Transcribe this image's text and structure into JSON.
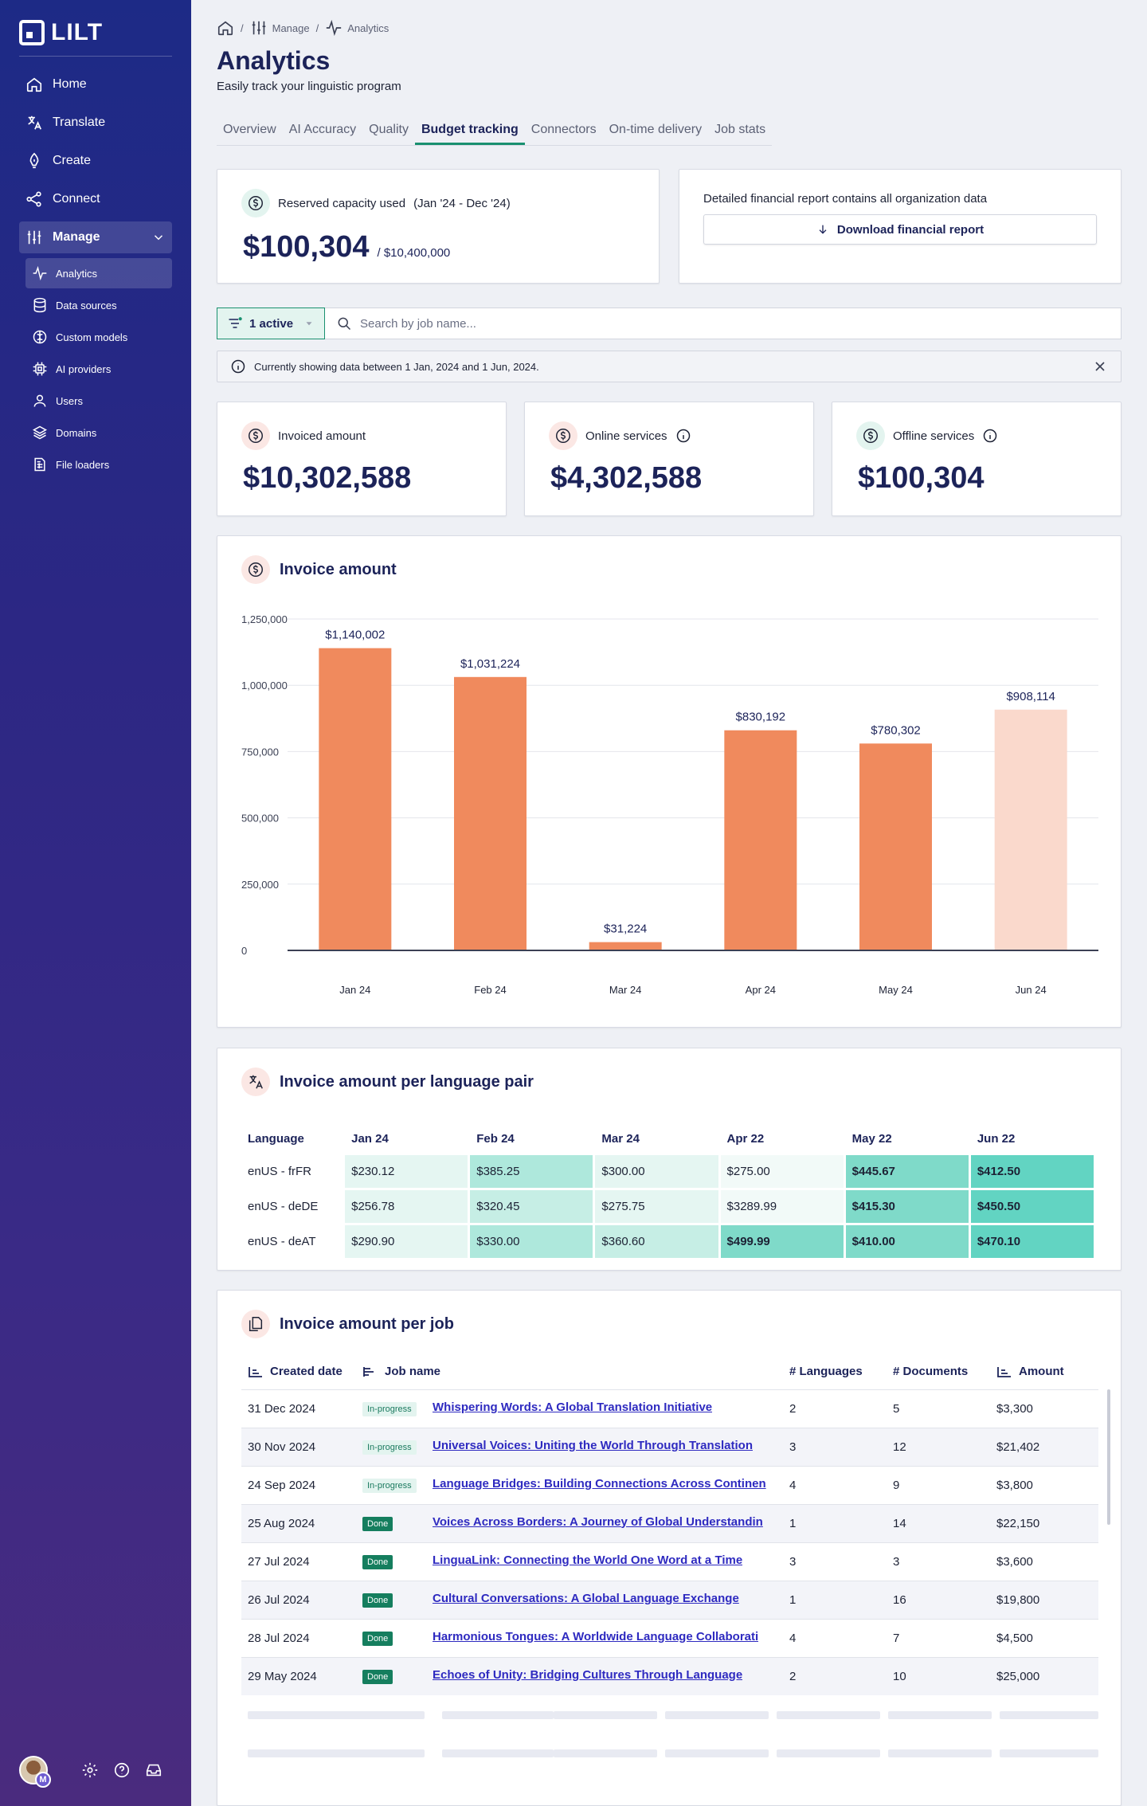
{
  "app": {
    "logo_text": "LILT"
  },
  "sidebar": {
    "items": [
      {
        "label": "Home",
        "icon": "home-icon"
      },
      {
        "label": "Translate",
        "icon": "translate-icon"
      },
      {
        "label": "Create",
        "icon": "pen-icon"
      },
      {
        "label": "Connect",
        "icon": "share-icon"
      },
      {
        "label": "Manage",
        "icon": "sliders-icon",
        "expanded": true
      }
    ],
    "subitems": [
      {
        "label": "Analytics",
        "icon": "activity-icon",
        "active": true
      },
      {
        "label": "Data sources",
        "icon": "database-icon"
      },
      {
        "label": "Custom models",
        "icon": "brain-icon"
      },
      {
        "label": "AI providers",
        "icon": "chip-icon"
      },
      {
        "label": "Users",
        "icon": "user-icon"
      },
      {
        "label": "Domains",
        "icon": "layers-icon"
      },
      {
        "label": "File loaders",
        "icon": "file-loader-icon"
      }
    ],
    "avatar_badge": "M"
  },
  "breadcrumb": {
    "manage": "Manage",
    "analytics": "Analytics"
  },
  "page": {
    "title": "Analytics",
    "subtitle": "Easily track your linguistic program"
  },
  "tabs": [
    "Overview",
    "AI Accuracy",
    "Quality",
    "Budget tracking",
    "Connectors",
    "On-time delivery",
    "Job stats"
  ],
  "active_tab": "Budget tracking",
  "capacity": {
    "label": "Reserved capacity used",
    "period": "(Jan '24 - Dec '24)",
    "value": "$100,304",
    "total": "/ $10,400,000"
  },
  "report": {
    "text": "Detailed financial report contains all organization data",
    "button": "Download financial report"
  },
  "filter": {
    "label": "1 active",
    "search_placeholder": "Search by job name..."
  },
  "info_bar": {
    "text": "Currently showing data between 1 Jan, 2024 and 1 Jun, 2024."
  },
  "kpis": [
    {
      "label": "Invoiced amount",
      "value": "$10,302,588",
      "info": false
    },
    {
      "label": "Online services",
      "value": "$4,302,588",
      "info": true
    },
    {
      "label": "Offline services",
      "value": "$100,304",
      "info": true
    }
  ],
  "chart_title": "Invoice amount",
  "chart_data": {
    "type": "bar",
    "categories": [
      "Jan 24",
      "Feb 24",
      "Mar 24",
      "Apr 24",
      "May 24",
      "Jun 24"
    ],
    "values": [
      1140002,
      1031224,
      31224,
      830192,
      780302,
      908114
    ],
    "data_labels": [
      "$1,140,002",
      "$1,031,224",
      "$31,224",
      "$830,192",
      "$780,302",
      "$908,114"
    ],
    "ylim": [
      0,
      1250000
    ],
    "yticks": [
      "0",
      "250,000",
      "500,000",
      "750,000",
      "1,000,000",
      "1,250,000"
    ],
    "ytick_values": [
      0,
      250000,
      500000,
      750000,
      1000000,
      1250000
    ],
    "grid": true,
    "bar_color": "#f08a5d",
    "projected_color": "#fad9cc",
    "projected_index": 5
  },
  "lang_table": {
    "title": "Invoice amount per language pair",
    "headers": [
      "Language",
      "Jan 24",
      "Feb 24",
      "Mar 24",
      "Apr 22",
      "May 22",
      "Jun 22"
    ],
    "rows": [
      {
        "lang": "enUS - frFR",
        "cells": [
          "$230.12",
          "$385.25",
          "$300.00",
          "$275.00",
          "$445.67",
          "$412.50"
        ],
        "levels": [
          1,
          3,
          1,
          0,
          4,
          5
        ]
      },
      {
        "lang": "enUS - deDE",
        "cells": [
          "$256.78",
          "$320.45",
          "$275.75",
          "$3289.99",
          "$415.30",
          "$450.50"
        ],
        "levels": [
          1,
          2,
          1,
          0,
          4,
          5
        ]
      },
      {
        "lang": "enUS - deAT",
        "cells": [
          "$290.90",
          "$330.00",
          "$360.60",
          "$499.99",
          "$410.00",
          "$470.10"
        ],
        "levels": [
          1,
          3,
          2,
          4,
          4,
          5
        ]
      }
    ]
  },
  "job_table": {
    "title": "Invoice amount per job",
    "headers": {
      "date": "Created date",
      "name": "Job name",
      "languages": "# Languages",
      "documents": "# Documents",
      "amount": "Amount"
    },
    "rows": [
      {
        "date": "31 Dec 2024",
        "status": "In-progress",
        "name": "Whispering Words: A Global Translation Initiative",
        "languages": "2",
        "documents": "5",
        "amount": "$3,300"
      },
      {
        "date": "30 Nov 2024",
        "status": "In-progress",
        "name": "Universal Voices: Uniting the World Through Translation",
        "languages": "3",
        "documents": "12",
        "amount": "$21,402"
      },
      {
        "date": "24 Sep 2024",
        "status": "In-progress",
        "name": "Language Bridges: Building Connections Across Continen",
        "languages": "4",
        "documents": "9",
        "amount": "$3,800"
      },
      {
        "date": "25 Aug 2024",
        "status": "Done",
        "name": "Voices Across Borders: A Journey of Global Understandin",
        "languages": "1",
        "documents": "14",
        "amount": "$22,150"
      },
      {
        "date": "27 Jul 2024",
        "status": "Done",
        "name": "LinguaLink: Connecting the World One Word at a Time",
        "languages": "3",
        "documents": "3",
        "amount": "$3,600"
      },
      {
        "date": "26 Jul 2024",
        "status": "Done",
        "name": "Cultural Conversations: A Global Language Exchange",
        "languages": "1",
        "documents": "16",
        "amount": "$19,800"
      },
      {
        "date": "28 Jul 2024",
        "status": "Done",
        "name": "Harmonious Tongues: A Worldwide Language Collaborati",
        "languages": "4",
        "documents": "7",
        "amount": "$4,500"
      },
      {
        "date": "29 May 2024",
        "status": "Done",
        "name": "Echoes of Unity: Bridging Cultures Through Language",
        "languages": "2",
        "documents": "10",
        "amount": "$25,000"
      }
    ]
  },
  "colors": {
    "heat": [
      "#f2faf8",
      "#e5f6f2",
      "#c6eee5",
      "#aee8dc",
      "#7fdac9",
      "#62d4c2"
    ],
    "accent": "#19906f",
    "navy": "#1c2359"
  }
}
